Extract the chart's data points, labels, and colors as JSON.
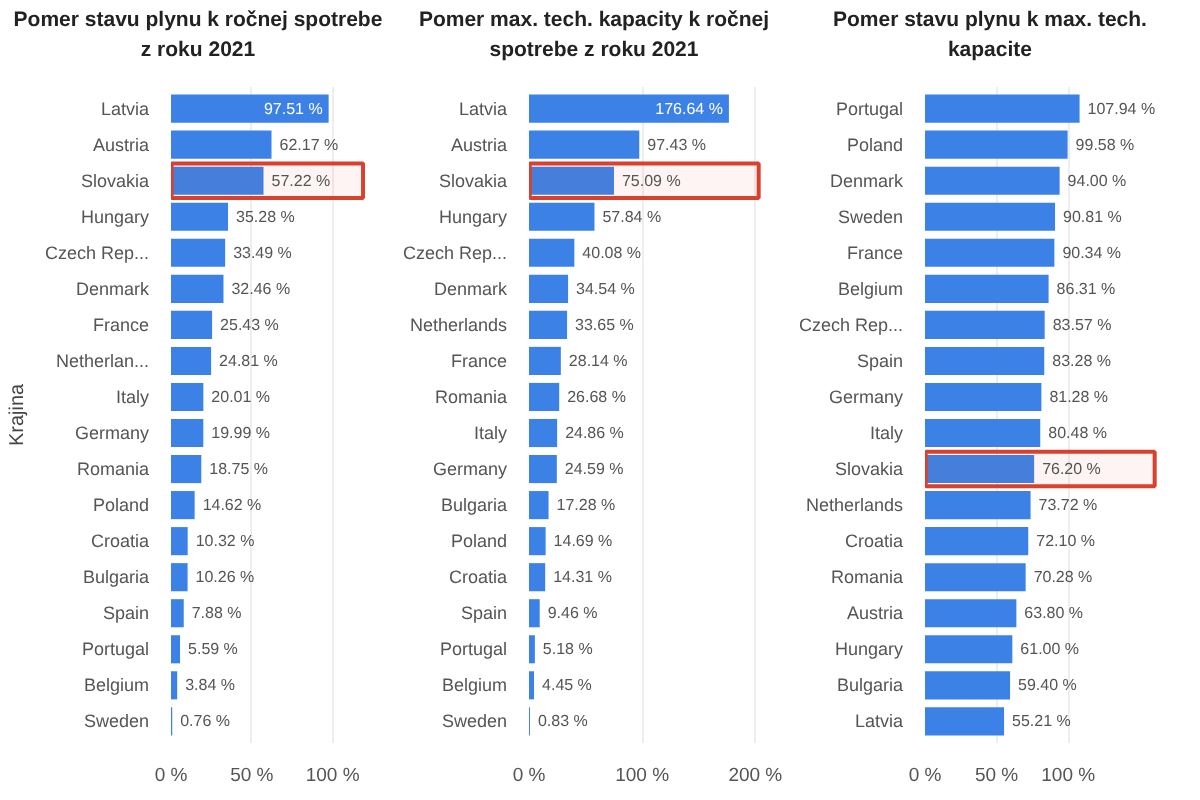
{
  "chart_data": [
    {
      "type": "bar",
      "orientation": "horizontal",
      "title": "Pomer stavu plynu k ročnej spotrebe z roku 2021",
      "ylabel": "Krajina",
      "categories": [
        "Latvia",
        "Austria",
        "Slovakia",
        "Hungary",
        "Czech Rep...",
        "Denmark",
        "France",
        "Netherlan...",
        "Italy",
        "Germany",
        "Romania",
        "Poland",
        "Croatia",
        "Bulgaria",
        "Spain",
        "Portugal",
        "Belgium",
        "Sweden"
      ],
      "values": [
        97.51,
        62.17,
        57.22,
        35.28,
        33.49,
        32.46,
        25.43,
        24.81,
        20.01,
        19.99,
        18.75,
        14.62,
        10.32,
        10.26,
        7.88,
        5.59,
        3.84,
        0.76
      ],
      "value_labels": [
        "97.51 %",
        "62.17 %",
        "57.22 %",
        "35.28 %",
        "33.49 %",
        "32.46 %",
        "25.43 %",
        "24.81 %",
        "20.01 %",
        "19.99 %",
        "18.75 %",
        "14.62 %",
        "10.32 %",
        "10.26 %",
        "7.88 %",
        "5.59 %",
        "3.84 %",
        "0.76 %"
      ],
      "color": "#3c82e6",
      "xlim": [
        0,
        120
      ],
      "xticks": [
        {
          "value": 0,
          "label": "0 %"
        },
        {
          "value": 50,
          "label": "50 %"
        },
        {
          "value": 100,
          "label": "100 %"
        }
      ],
      "grid": "x",
      "bands": [
        {
          "axis": "y",
          "from": "Slovakia",
          "to": "Slovakia",
          "color": "#d9412f"
        }
      ]
    },
    {
      "type": "bar",
      "orientation": "horizontal",
      "title": "Pomer max. tech. kapacity k ročnej spotrebe z roku 2021",
      "categories": [
        "Latvia",
        "Austria",
        "Slovakia",
        "Hungary",
        "Czech Rep...",
        "Denmark",
        "Netherlands",
        "France",
        "Romania",
        "Italy",
        "Germany",
        "Bulgaria",
        "Poland",
        "Croatia",
        "Spain",
        "Portugal",
        "Belgium",
        "Sweden"
      ],
      "values": [
        176.64,
        97.43,
        75.09,
        57.84,
        40.08,
        34.54,
        33.65,
        28.14,
        26.68,
        24.86,
        24.59,
        17.28,
        14.69,
        14.31,
        9.46,
        5.18,
        4.45,
        0.83
      ],
      "value_labels": [
        "176.64 %",
        "97.43 %",
        "75.09 %",
        "57.84 %",
        "40.08 %",
        "34.54 %",
        "33.65 %",
        "28.14 %",
        "26.68 %",
        "24.86 %",
        "24.59 %",
        "17.28 %",
        "14.69 %",
        "14.31 %",
        "9.46 %",
        "5.18 %",
        "4.45 %",
        "0.83 %"
      ],
      "color": "#3c82e6",
      "xlim": [
        0,
        205
      ],
      "xticks": [
        {
          "value": 0,
          "label": "0 %"
        },
        {
          "value": 100,
          "label": "100 %"
        },
        {
          "value": 200,
          "label": "200 %"
        }
      ],
      "grid": "x",
      "bands": [
        {
          "axis": "y",
          "from": "Slovakia",
          "to": "Slovakia",
          "color": "#d9412f"
        }
      ]
    },
    {
      "type": "bar",
      "orientation": "horizontal",
      "title": "Pomer stavu plynu k max. tech. kapacite",
      "categories": [
        "Portugal",
        "Poland",
        "Denmark",
        "Sweden",
        "France",
        "Belgium",
        "Czech Rep...",
        "Spain",
        "Germany",
        "Italy",
        "Slovakia",
        "Netherlands",
        "Croatia",
        "Romania",
        "Austria",
        "Hungary",
        "Bulgaria",
        "Latvia"
      ],
      "values": [
        107.94,
        99.58,
        94.0,
        90.81,
        90.34,
        86.31,
        83.57,
        83.28,
        81.28,
        80.48,
        76.2,
        73.72,
        72.1,
        70.28,
        63.8,
        61.0,
        59.4,
        55.21
      ],
      "value_labels": [
        "107.94 %",
        "99.58 %",
        "94.00 %",
        "90.81 %",
        "90.34 %",
        "86.31 %",
        "83.57 %",
        "83.28 %",
        "81.28 %",
        "80.48 %",
        "76.20 %",
        "73.72 %",
        "72.10 %",
        "70.28 %",
        "63.80 %",
        "61.00 %",
        "59.40 %",
        "55.21 %"
      ],
      "color": "#3c82e6",
      "xlim": [
        0,
        162
      ],
      "xticks": [
        {
          "value": 0,
          "label": "0 %"
        },
        {
          "value": 50,
          "label": "50 %"
        },
        {
          "value": 100,
          "label": "100 %"
        }
      ],
      "grid": "x",
      "bands": [
        {
          "axis": "y",
          "from": "Slovakia",
          "to": "Slovakia",
          "color": "#d9412f"
        }
      ]
    }
  ]
}
